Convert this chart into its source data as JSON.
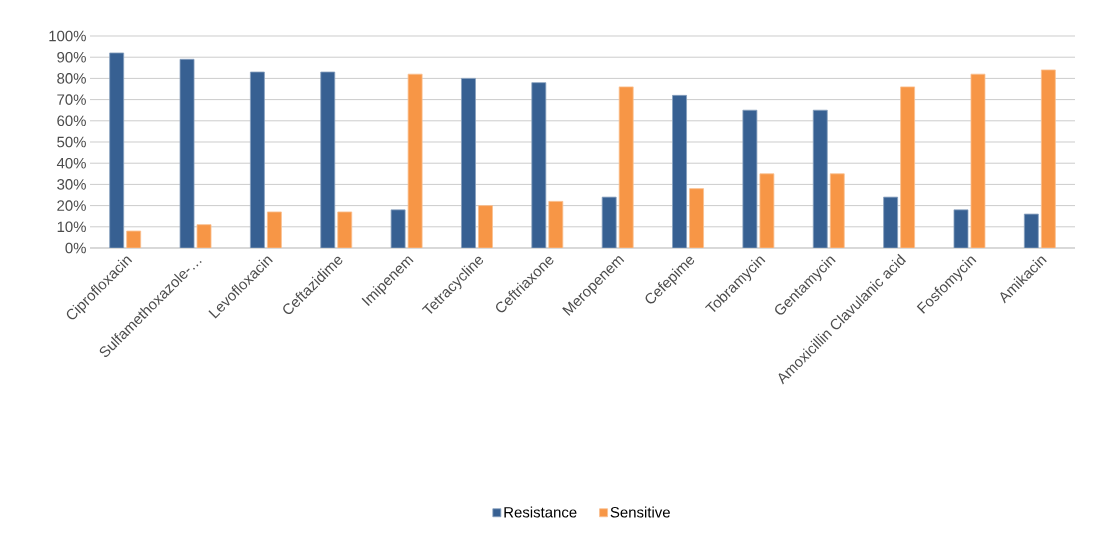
{
  "chart_data": {
    "type": "bar",
    "categories": [
      "Ciprofloxacin",
      "Sulfamethoxazole-…",
      "Levofloxacin",
      "Ceftazidime",
      "Imipenem",
      "Tetracycline",
      "Ceftriaxone",
      "Meropenem",
      "Cefepime",
      "Tobramycin",
      "Gentamycin",
      "Amoxicillin Clavulanic acid",
      "Fosfomycin",
      "Amikacin"
    ],
    "series": [
      {
        "name": "Resistance",
        "color": "#376092",
        "values": [
          92,
          89,
          83,
          83,
          18,
          80,
          78,
          24,
          72,
          65,
          65,
          24,
          18,
          16
        ]
      },
      {
        "name": "Sensitive",
        "color": "#f79646",
        "values": [
          8,
          11,
          17,
          17,
          82,
          20,
          22,
          76,
          28,
          35,
          35,
          76,
          82,
          84
        ]
      }
    ],
    "ylim": [
      0,
      100
    ],
    "yticks": [
      {
        "value": 0,
        "label": "0%"
      },
      {
        "value": 10,
        "label": "10%"
      },
      {
        "value": 20,
        "label": "20%"
      },
      {
        "value": 30,
        "label": "30%"
      },
      {
        "value": 40,
        "label": "40%"
      },
      {
        "value": 50,
        "label": "50%"
      },
      {
        "value": 60,
        "label": "60%"
      },
      {
        "value": 70,
        "label": "70%"
      },
      {
        "value": 80,
        "label": "80%"
      },
      {
        "value": 90,
        "label": "90%"
      },
      {
        "value": 100,
        "label": "100%"
      }
    ],
    "grid": "y",
    "legend": "bottom"
  }
}
